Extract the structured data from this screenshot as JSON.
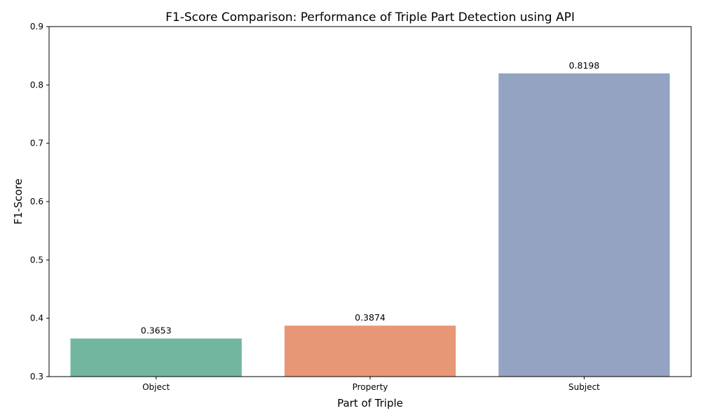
{
  "chart_data": {
    "type": "bar",
    "title": "F1-Score Comparison: Performance of Triple Part Detection using API",
    "xlabel": "Part of Triple",
    "ylabel": "F1-Score",
    "categories": [
      "Object",
      "Property",
      "Subject"
    ],
    "values": [
      0.3653,
      0.3874,
      0.8198
    ],
    "value_labels": [
      "0.3653",
      "0.3874",
      "0.8198"
    ],
    "colors": [
      "#72b6a0",
      "#e89776",
      "#94a3c1"
    ],
    "ylim": [
      0.3,
      0.9
    ],
    "yticks": [
      0.3,
      0.4,
      0.5,
      0.6,
      0.7,
      0.8,
      0.9
    ],
    "ytick_labels": [
      "0.3",
      "0.4",
      "0.5",
      "0.6",
      "0.7",
      "0.8",
      "0.9"
    ],
    "grid": false,
    "legend": "none"
  }
}
